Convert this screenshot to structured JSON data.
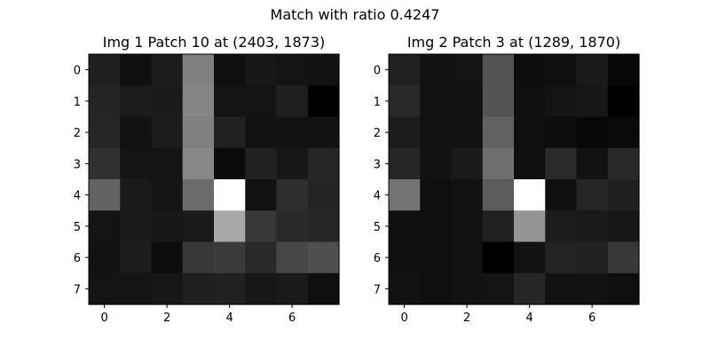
{
  "figure": {
    "suptitle": "Match with ratio 0.4247"
  },
  "chart_data": [
    {
      "type": "heatmap",
      "title": "Img 1 Patch 10 at (2403, 1873)",
      "colormap": "gray",
      "xlabel": "",
      "ylabel": "",
      "x_ticks": [
        0,
        2,
        4,
        6
      ],
      "y_ticks": [
        0,
        1,
        2,
        3,
        4,
        5,
        6,
        7
      ],
      "grid": false,
      "values": [
        [
          0.12,
          0.06,
          0.11,
          0.5,
          0.06,
          0.09,
          0.08,
          0.07
        ],
        [
          0.14,
          0.11,
          0.1,
          0.52,
          0.08,
          0.08,
          0.12,
          0.0
        ],
        [
          0.15,
          0.07,
          0.11,
          0.5,
          0.13,
          0.07,
          0.07,
          0.07
        ],
        [
          0.19,
          0.08,
          0.08,
          0.53,
          0.04,
          0.13,
          0.09,
          0.15
        ],
        [
          0.39,
          0.1,
          0.08,
          0.42,
          1.0,
          0.07,
          0.18,
          0.14
        ],
        [
          0.08,
          0.1,
          0.09,
          0.1,
          0.66,
          0.22,
          0.16,
          0.15
        ],
        [
          0.07,
          0.11,
          0.05,
          0.22,
          0.23,
          0.16,
          0.28,
          0.31
        ],
        [
          0.08,
          0.08,
          0.09,
          0.12,
          0.13,
          0.09,
          0.1,
          0.06
        ]
      ]
    },
    {
      "type": "heatmap",
      "title": "Img 2 Patch 3 at (1289, 1870)",
      "colormap": "gray",
      "xlabel": "",
      "ylabel": "",
      "x_ticks": [
        0,
        2,
        4,
        6
      ],
      "y_ticks": [
        0,
        1,
        2,
        3,
        4,
        5,
        6,
        7
      ],
      "grid": false,
      "values": [
        [
          0.13,
          0.07,
          0.08,
          0.32,
          0.05,
          0.06,
          0.1,
          0.03
        ],
        [
          0.16,
          0.07,
          0.07,
          0.33,
          0.06,
          0.08,
          0.09,
          0.0
        ],
        [
          0.11,
          0.07,
          0.07,
          0.38,
          0.06,
          0.05,
          0.03,
          0.04
        ],
        [
          0.15,
          0.07,
          0.1,
          0.43,
          0.06,
          0.17,
          0.07,
          0.16
        ],
        [
          0.45,
          0.06,
          0.07,
          0.36,
          1.0,
          0.06,
          0.15,
          0.12
        ],
        [
          0.06,
          0.06,
          0.07,
          0.13,
          0.58,
          0.11,
          0.1,
          0.09
        ],
        [
          0.06,
          0.06,
          0.07,
          0.0,
          0.07,
          0.14,
          0.13,
          0.22
        ],
        [
          0.07,
          0.06,
          0.07,
          0.08,
          0.15,
          0.07,
          0.07,
          0.06
        ]
      ]
    }
  ]
}
